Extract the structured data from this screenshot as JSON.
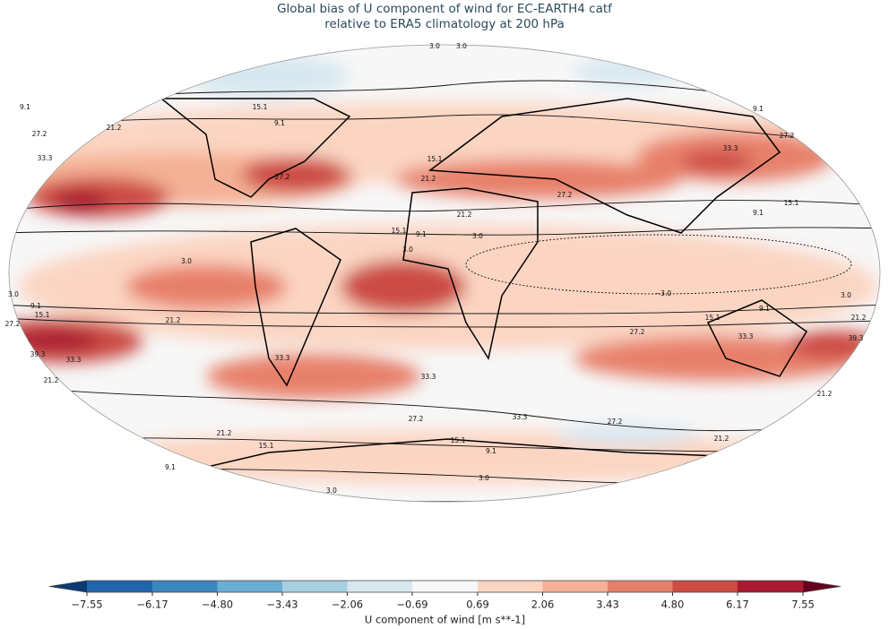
{
  "chart_data": {
    "type": "map",
    "title_lines": [
      "Global bias of U component of wind for EC-EARTH4 catf",
      "relative to ERA5 climatology at 200 hPa"
    ],
    "colorbar": {
      "label": "U component of wind [m s**-1]",
      "ticks": [
        {
          "value": -7.55,
          "label": "−7.55"
        },
        {
          "value": -6.17,
          "label": "−6.17"
        },
        {
          "value": -4.8,
          "label": "−4.80"
        },
        {
          "value": -3.43,
          "label": "−3.43"
        },
        {
          "value": -2.06,
          "label": "−2.06"
        },
        {
          "value": -0.69,
          "label": "−0.69"
        },
        0.69,
        2.06,
        3.43,
        {
          "value": 4.8,
          "label": "4.80"
        },
        6.17,
        7.55
      ],
      "colors": [
        "#2166ac",
        "#3a87c0",
        "#6aaed3",
        "#a6cfe4",
        "#d8e8f1",
        "#f7f7f7",
        "#fbd5c2",
        "#f4b094",
        "#e7806a",
        "#cc4c44",
        "#a81a30"
      ],
      "under_color": "#0a3a72",
      "over_color": "#67001f"
    },
    "contour_labels": [
      "3.0",
      "3.0",
      "9.1",
      "21.2",
      "27.2",
      "33.3",
      "15.1",
      "9.1",
      "27.2",
      "15.1",
      "21.2",
      "27.2",
      "21.2",
      "15.1",
      "9.1",
      "3.0",
      "3.0",
      "3.0",
      "3.0",
      "9.1",
      "15.1",
      "27.2",
      "39.3",
      "33.3",
      "21.2",
      "21.2",
      "33.3",
      "33.3",
      "33.3",
      "27.2",
      "27.2",
      "21.2",
      "21.2",
      "15.1",
      "15.1",
      "9.1",
      "9.1",
      "3.0",
      "3.0",
      "9.1",
      "33.3",
      "27.2",
      "15.1",
      "9.1",
      "−3.0",
      "3.0",
      "9.1",
      "15.1",
      "21.2",
      "27.2",
      "33.3",
      "39.3",
      "21.2"
    ]
  }
}
